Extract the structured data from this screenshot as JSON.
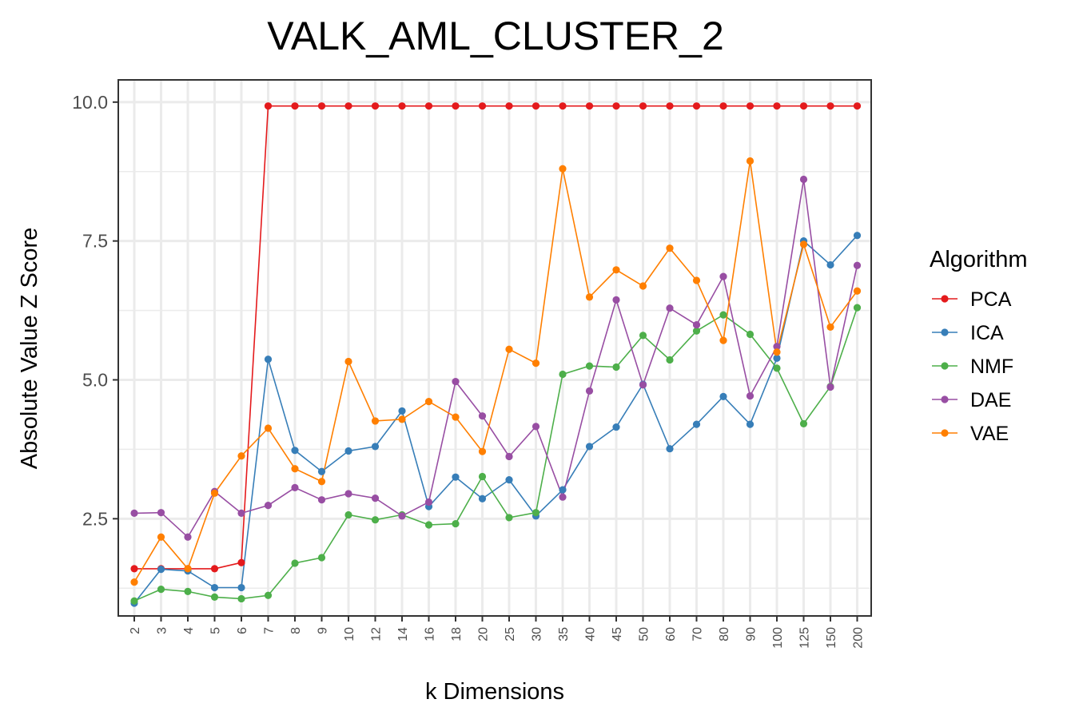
{
  "chart_data": {
    "type": "line",
    "title": "VALK_AML_CLUSTER_2",
    "xlabel": "k Dimensions",
    "ylabel": "Absolute Value Z Score",
    "categories": [
      "2",
      "3",
      "4",
      "5",
      "6",
      "7",
      "8",
      "9",
      "10",
      "12",
      "14",
      "16",
      "18",
      "20",
      "25",
      "30",
      "35",
      "40",
      "45",
      "50",
      "60",
      "70",
      "80",
      "90",
      "100",
      "125",
      "150",
      "200"
    ],
    "yticks": [
      2.5,
      5.0,
      7.5,
      10.0
    ],
    "ytick_labels": [
      "2.5",
      "5.0",
      "7.5",
      "10.0"
    ],
    "ylim": [
      0.75,
      10.4
    ],
    "grid": true,
    "legend": {
      "title": "Algorithm",
      "position": "right"
    },
    "series": [
      {
        "name": "PCA",
        "color": "#e41a1c",
        "values": [
          1.6,
          1.6,
          1.6,
          1.6,
          1.71,
          9.93,
          9.93,
          9.93,
          9.93,
          9.93,
          9.93,
          9.93,
          9.93,
          9.93,
          9.93,
          9.93,
          9.93,
          9.93,
          9.93,
          9.93,
          9.93,
          9.93,
          9.93,
          9.93,
          9.93,
          9.93,
          9.93,
          9.93
        ]
      },
      {
        "name": "ICA",
        "color": "#377eb8",
        "values": [
          0.98,
          1.59,
          1.56,
          1.26,
          1.26,
          5.37,
          3.73,
          3.35,
          3.72,
          3.8,
          4.44,
          2.72,
          3.25,
          2.86,
          3.2,
          2.55,
          3.02,
          3.8,
          4.15,
          4.92,
          3.76,
          4.2,
          4.7,
          4.2,
          5.39,
          7.5,
          7.07,
          7.6
        ]
      },
      {
        "name": "NMF",
        "color": "#4daf4a",
        "values": [
          1.02,
          1.23,
          1.19,
          1.09,
          1.06,
          1.12,
          1.7,
          1.8,
          2.57,
          2.48,
          2.57,
          2.39,
          2.41,
          3.26,
          2.52,
          2.61,
          5.1,
          5.25,
          5.23,
          5.8,
          5.36,
          5.88,
          6.17,
          5.82,
          5.21,
          4.21,
          4.88,
          6.3
        ]
      },
      {
        "name": "DAE",
        "color": "#984ea3",
        "values": [
          2.6,
          2.61,
          2.17,
          2.99,
          2.6,
          2.74,
          3.06,
          2.84,
          2.95,
          2.87,
          2.55,
          2.8,
          4.97,
          4.35,
          3.62,
          4.16,
          2.89,
          4.8,
          6.44,
          4.91,
          6.29,
          5.99,
          6.86,
          4.71,
          5.6,
          8.61,
          4.87,
          7.06
        ]
      },
      {
        "name": "VAE",
        "color": "#ff7f00",
        "values": [
          1.36,
          2.17,
          1.6,
          2.96,
          3.63,
          4.13,
          3.4,
          3.17,
          5.33,
          4.26,
          4.29,
          4.61,
          4.33,
          3.71,
          5.55,
          5.3,
          8.8,
          6.49,
          6.98,
          6.69,
          7.37,
          6.79,
          5.71,
          8.94,
          5.5,
          7.44,
          5.95,
          6.6
        ]
      }
    ]
  }
}
